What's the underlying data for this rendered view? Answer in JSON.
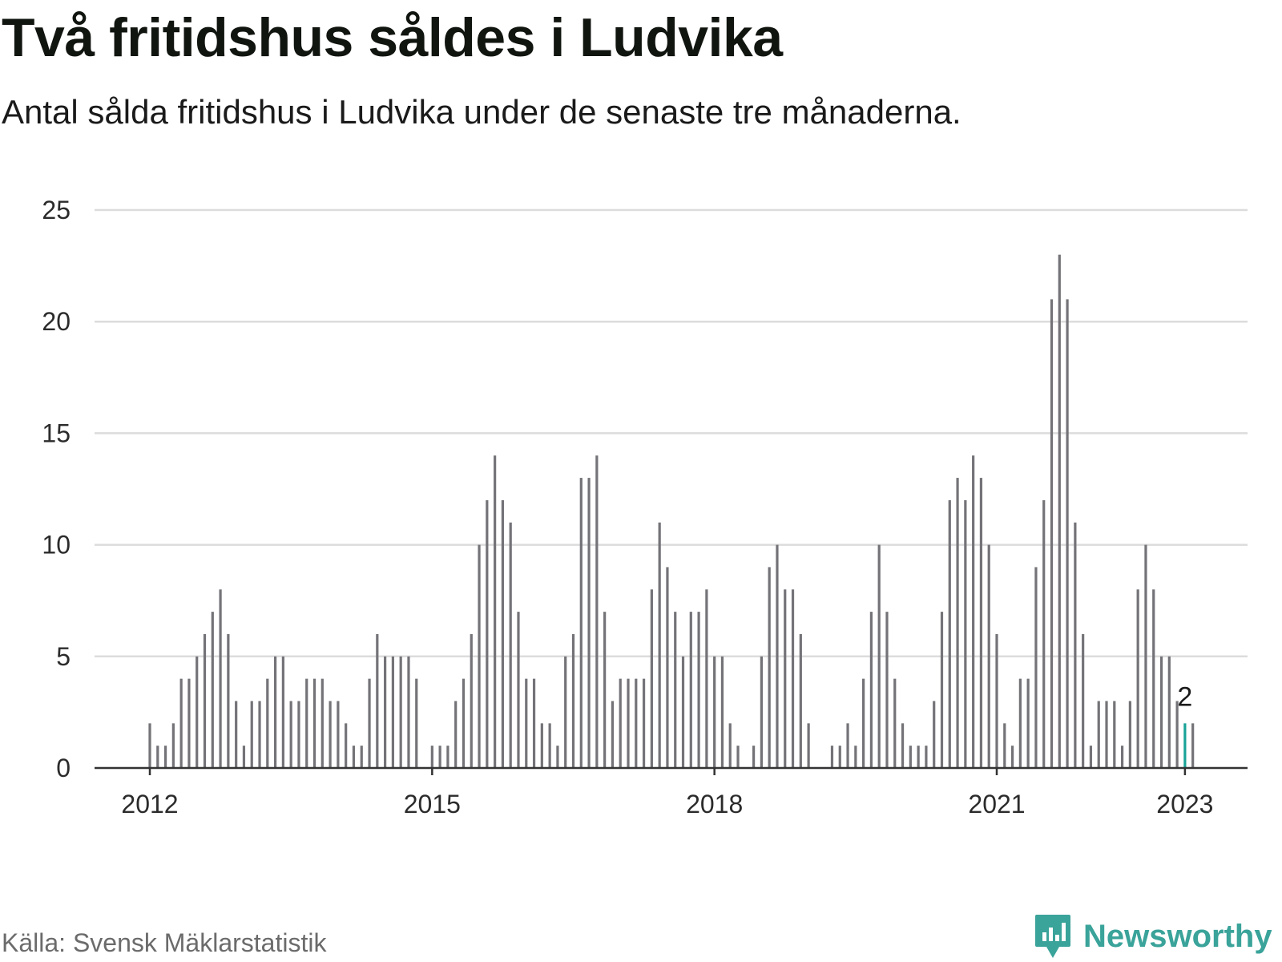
{
  "title": "Två fritidshus såldes i Ludvika",
  "subtitle": "Antal sålda fritidshus i Ludvika under de senaste tre månaderna.",
  "source": "Källa: Svensk Mäklarstatistik",
  "brand": {
    "name": "Newsworthy",
    "icon": "newsworthy-logo-icon",
    "color": "#3aa39a"
  },
  "colors": {
    "bar": "#737378",
    "highlight": "#1aa398",
    "grid": "#dcdcdc",
    "axis": "#333333"
  },
  "chart_data": {
    "type": "bar",
    "title": "Två fritidshus såldes i Ludvika",
    "subtitle": "Antal sålda fritidshus i Ludvika under de senaste tre månaderna.",
    "xlabel": "",
    "ylabel": "",
    "start": "2012-01",
    "frequency": "monthly",
    "ylim": [
      0,
      25
    ],
    "yticks": [
      0,
      5,
      10,
      15,
      20,
      25
    ],
    "xticks": [
      {
        "label": "2012",
        "month": "2012-01"
      },
      {
        "label": "2015",
        "month": "2015-01"
      },
      {
        "label": "2018",
        "month": "2018-01"
      },
      {
        "label": "2021",
        "month": "2021-01"
      },
      {
        "label": "2023",
        "month": "2023-01"
      }
    ],
    "grid": true,
    "highlight": {
      "month": "2023-01",
      "value": 2,
      "label": "2"
    },
    "series": [
      {
        "values": [
          2,
          1,
          1,
          2,
          4,
          4,
          5,
          6,
          7,
          8,
          6,
          3,
          1,
          3,
          3,
          4,
          5,
          5,
          3,
          3,
          4,
          4,
          4,
          3,
          3,
          2,
          1,
          1,
          4,
          6,
          5,
          5,
          5,
          5,
          4,
          0,
          1,
          1,
          1,
          3,
          4,
          6,
          10,
          12,
          14,
          12,
          11,
          7,
          4,
          4,
          2,
          2,
          1,
          5,
          6,
          13,
          13,
          14,
          7,
          3,
          4,
          4,
          4,
          4,
          8,
          11,
          9,
          7,
          5,
          7,
          7,
          8,
          5,
          5,
          2,
          1,
          0,
          1,
          5,
          9,
          10,
          8,
          8,
          6,
          2,
          0,
          0,
          1,
          1,
          2,
          1,
          4,
          7,
          10,
          7,
          4,
          2,
          1,
          1,
          1,
          3,
          7,
          12,
          13,
          12,
          14,
          13,
          10,
          6,
          2,
          1,
          4,
          4,
          9,
          12,
          21,
          23,
          21,
          11,
          6,
          1,
          3,
          3,
          3,
          1,
          3,
          8,
          10,
          8,
          5,
          5,
          3,
          2,
          2
        ]
      }
    ]
  }
}
